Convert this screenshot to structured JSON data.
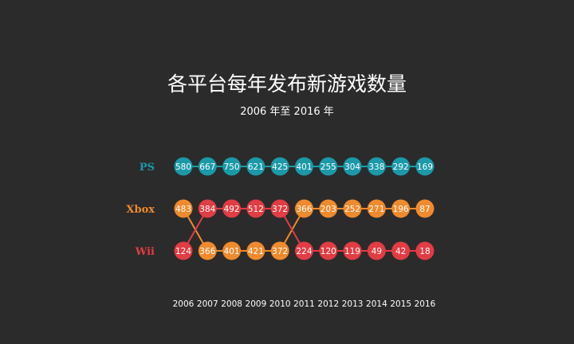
{
  "title": "各平台每年发布新游戏数量",
  "subtitle": "2006 年至 2016 年",
  "colors": {
    "background": "#2b2b2b",
    "text": "#ffffff",
    "PS": "#1a9aa8",
    "Xbox": "#f08a2c",
    "Wii": "#e23c44"
  },
  "chart_data": {
    "type": "line",
    "title": "各平台每年发布新游戏数量",
    "subtitle": "2006 年至 2016 年",
    "x": [
      "2006",
      "2007",
      "2008",
      "2009",
      "2010",
      "2011",
      "2012",
      "2013",
      "2014",
      "2015",
      "2016"
    ],
    "rank_labels": [
      "PS",
      "Xbox",
      "Wii"
    ],
    "legend": "left",
    "grid": false,
    "series": [
      {
        "name": "PS",
        "values": [
          580,
          667,
          750,
          621,
          425,
          401,
          255,
          304,
          338,
          292,
          169
        ],
        "ranks": [
          1,
          1,
          1,
          1,
          1,
          1,
          1,
          1,
          1,
          1,
          1
        ]
      },
      {
        "name": "Xbox",
        "values": [
          483,
          366,
          401,
          421,
          372,
          366,
          203,
          252,
          271,
          196,
          87
        ],
        "ranks": [
          2,
          3,
          3,
          3,
          3,
          2,
          2,
          2,
          2,
          2,
          2
        ]
      },
      {
        "name": "Wii",
        "values": [
          124,
          384,
          492,
          512,
          372,
          224,
          120,
          119,
          49,
          42,
          18
        ],
        "ranks": [
          3,
          2,
          2,
          2,
          2,
          3,
          3,
          3,
          3,
          3,
          3
        ]
      }
    ]
  }
}
